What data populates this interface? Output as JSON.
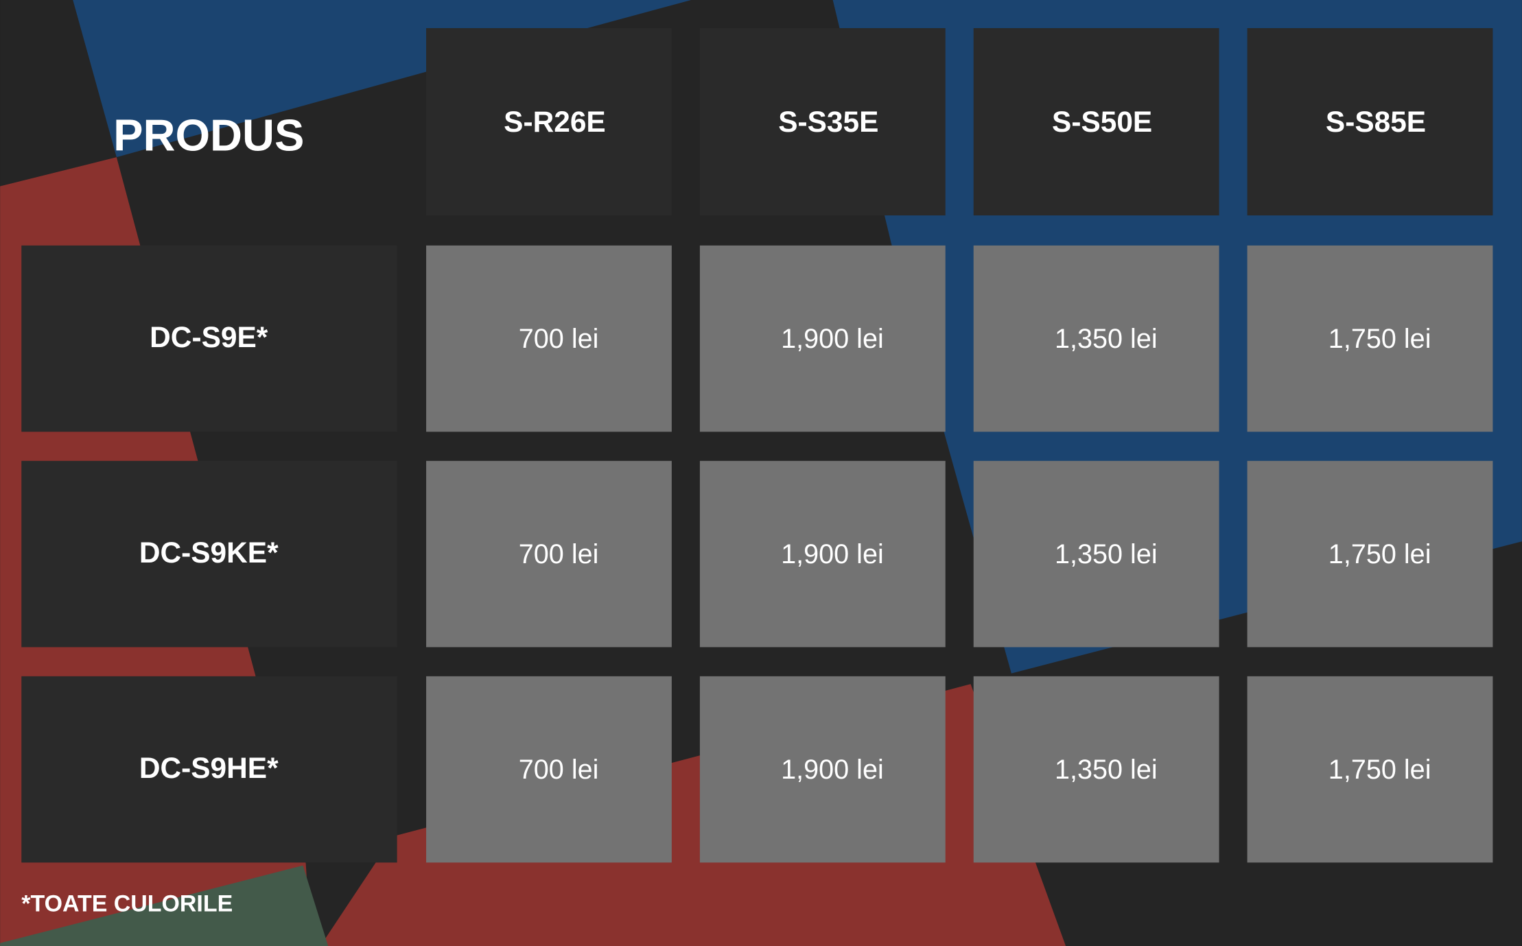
{
  "header": {
    "title": "PRODUS",
    "columns": [
      "S-R26E",
      "S-S35E",
      "S-S50E",
      "S-S85E"
    ]
  },
  "table": {
    "rows": [
      {
        "label": "DC-S9E*",
        "cells": [
          "700 lei",
          "1,900 lei",
          "1,350 lei",
          "1,750 lei"
        ]
      },
      {
        "label": "DC-S9KE*",
        "cells": [
          "700 lei",
          "1,900 lei",
          "1,350 lei",
          "1,750 lei"
        ]
      },
      {
        "label": "DC-S9HE*",
        "cells": [
          "700 lei",
          "1,900 lei",
          "1,350 lei",
          "1,750 lei"
        ]
      }
    ]
  },
  "footnote": "*TOATE CULORILE"
}
